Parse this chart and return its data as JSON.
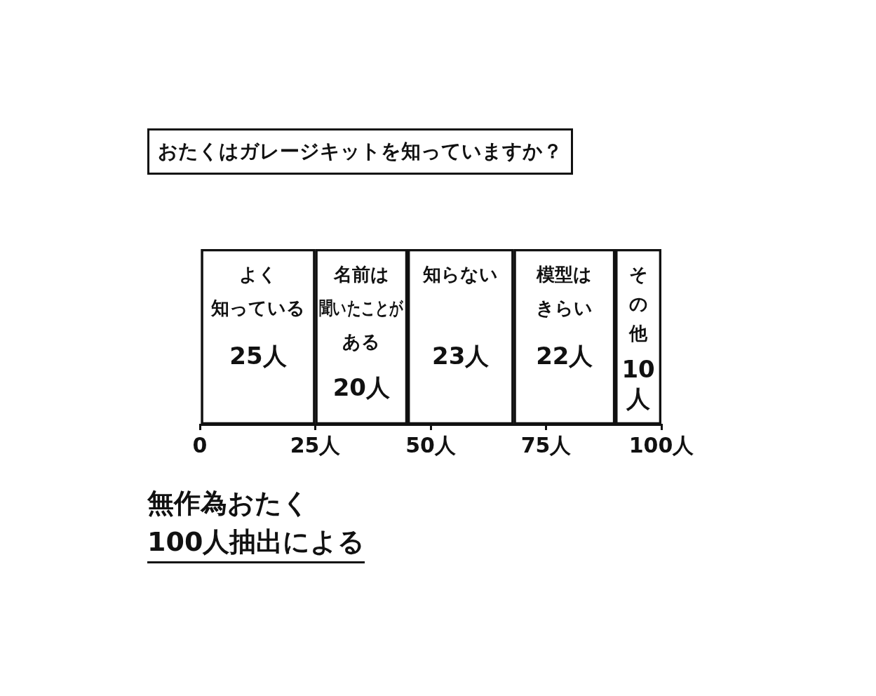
{
  "chart_data": {
    "type": "bar",
    "orientation": "horizontal",
    "stacked": true,
    "title": "おたくはガレージキットを知っていますか？",
    "categories": [
      null
    ],
    "series": [
      {
        "name": "よく知っている",
        "color": "#111111",
        "values": [
          25
        ],
        "value_labels": [
          "25人"
        ]
      },
      {
        "name": "名前は聞いたことがある",
        "color": "#111111",
        "values": [
          20
        ],
        "value_labels": [
          "20人"
        ]
      },
      {
        "name": "知らない",
        "color": "#111111",
        "values": [
          23
        ],
        "value_labels": [
          "23人"
        ]
      },
      {
        "name": "模型はきらい",
        "color": "#111111",
        "values": [
          22
        ],
        "value_labels": [
          "22人"
        ]
      },
      {
        "name": "その他",
        "color": "#111111",
        "values": [
          10
        ],
        "value_labels": [
          "10人"
        ]
      }
    ],
    "xlim": [
      0,
      100
    ],
    "xticks": [
      0,
      {
        "value": 25,
        "label": "25人"
      },
      {
        "value": 50,
        "label": "50人"
      },
      {
        "value": 75,
        "label": "75人"
      },
      {
        "value": 100,
        "label": "100人"
      }
    ],
    "tick_labels": "x",
    "legend": false,
    "annotations": [
      "無作為おたく\n100人抽出による"
    ]
  }
}
